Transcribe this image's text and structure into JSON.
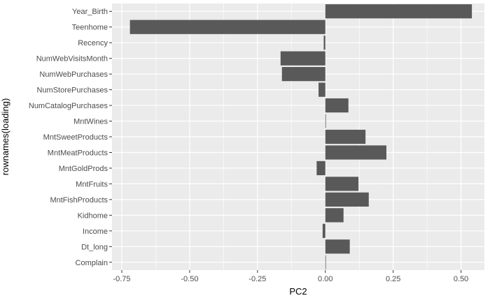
{
  "chart_data": {
    "type": "bar",
    "orientation": "horizontal",
    "xlabel": "PC2",
    "ylabel": "rownames(loading)",
    "xlim": [
      -0.75,
      0.55
    ],
    "x_ticks": [
      -0.75,
      -0.5,
      -0.25,
      0.0,
      0.25,
      0.5
    ],
    "x_tick_labels": [
      "-0.75",
      "-0.50",
      "-0.25",
      "0.00",
      "0.25",
      "0.50"
    ],
    "grid": true,
    "bar_color": "#595959",
    "panel_color": "#ebebeb",
    "categories": [
      "Year_Birth",
      "Teenhome",
      "Recency",
      "NumWebVisitsMonth",
      "NumWebPurchases",
      "NumStorePurchases",
      "NumCatalogPurchases",
      "MntWines",
      "MntSweetProducts",
      "MntMeatProducts",
      "MntGoldProds",
      "MntFruits",
      "MntFishProducts",
      "Kidhome",
      "Income",
      "Dt_long",
      "Complain"
    ],
    "values": [
      0.54,
      -0.72,
      -0.006,
      -0.165,
      -0.16,
      -0.025,
      0.085,
      0.002,
      0.148,
      0.225,
      -0.032,
      0.122,
      0.16,
      0.067,
      -0.01,
      0.09,
      0.0
    ]
  }
}
